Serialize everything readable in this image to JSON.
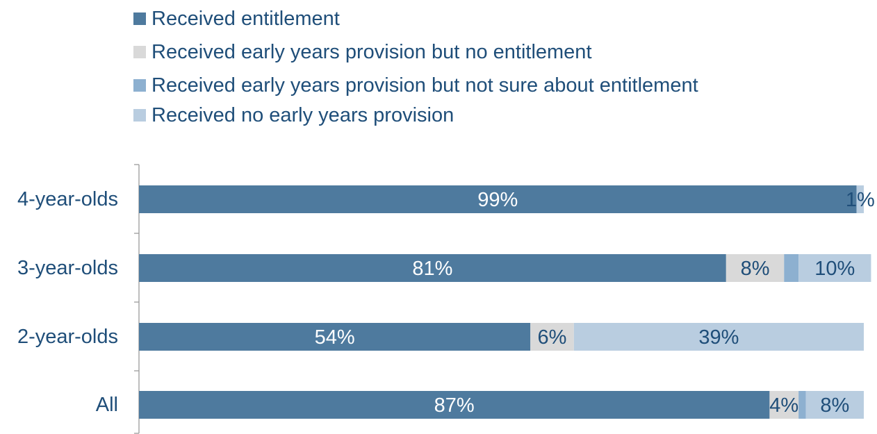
{
  "chart_data": {
    "type": "bar",
    "orientation": "horizontal",
    "stacked": true,
    "title": "",
    "xlabel": "",
    "ylabel": "",
    "xlim": [
      0,
      100
    ],
    "categories": [
      "4-year-olds",
      "3-year-olds",
      "2-year-olds",
      "All"
    ],
    "series": [
      {
        "name": "Received entitlement",
        "color": "#4e7a9e",
        "values": [
          99,
          81,
          54,
          87
        ],
        "labels": [
          "99%",
          "81%",
          "54%",
          "87%"
        ]
      },
      {
        "name": "Received early years provision but no entitlement",
        "color": "#d9d9d9",
        "values": [
          0,
          8,
          6,
          4
        ],
        "labels": [
          "",
          "8%",
          "6%",
          "4%"
        ]
      },
      {
        "name": "Received early years provision but not sure about entitlement",
        "color": "#8db0d0",
        "values": [
          0,
          2,
          0,
          1
        ],
        "labels": [
          "",
          "",
          "",
          ""
        ]
      },
      {
        "name": "Received no early years provision",
        "color": "#b9cde0",
        "values": [
          1,
          10,
          39,
          8
        ],
        "labels": [
          "1%",
          "10%",
          "39%",
          "8%"
        ]
      }
    ],
    "legend_position": "top",
    "grid": false
  },
  "colors": {
    "label_on_dark": "#ffffff",
    "label_on_light": "#1f4e79",
    "category_text": "#1f4e79",
    "legend_text": "#1f4e79",
    "axis": "#9a9a9a"
  }
}
